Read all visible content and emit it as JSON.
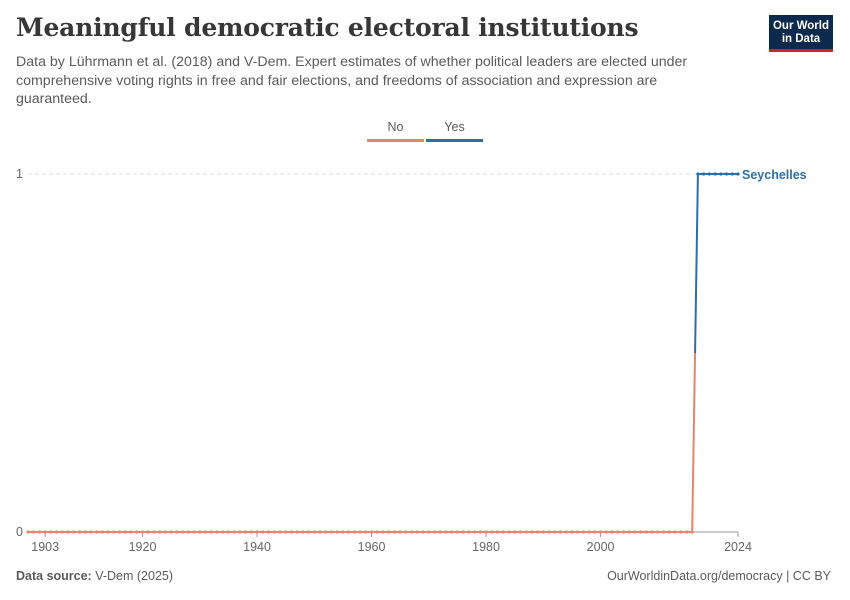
{
  "header": {
    "title": "Meaningful democratic electoral institutions",
    "subtitle": "Data by Lührmann et al. (2018) and V-Dem. Expert estimates of whether political leaders are elected under comprehensive voting rights in free and fair elections, and freedoms of association and expression are guaranteed.",
    "logo_line1": "Our World",
    "logo_line2": "in Data"
  },
  "footer": {
    "source_label": "Data source:",
    "source_value": "V-Dem (2025)",
    "link": "OurWorldinData.org/democracy | CC BY"
  },
  "colors": {
    "no": "#e6856a",
    "yes": "#2c6fa8",
    "grid": "#dddddd"
  },
  "chart_data": {
    "type": "line",
    "title": "Meaningful democratic electoral institutions",
    "xlabel": "",
    "ylabel": "",
    "xlim": [
      1900,
      2024
    ],
    "ylim": [
      0,
      1
    ],
    "x_ticks": [
      1903,
      1920,
      1940,
      1960,
      1980,
      2000,
      2024
    ],
    "y_ticks": [
      0,
      1
    ],
    "legend": {
      "placement": "top-center",
      "entries": [
        "No",
        "Yes"
      ]
    },
    "grid": "horizontal dashed",
    "series": [
      {
        "name": "Seychelles",
        "points": [
          {
            "x_start": 1900,
            "x_end": 2016,
            "y": 0,
            "category": "No"
          },
          {
            "x_start": 2017,
            "x_end": 2024,
            "y": 1,
            "category": "Yes"
          }
        ]
      }
    ]
  }
}
